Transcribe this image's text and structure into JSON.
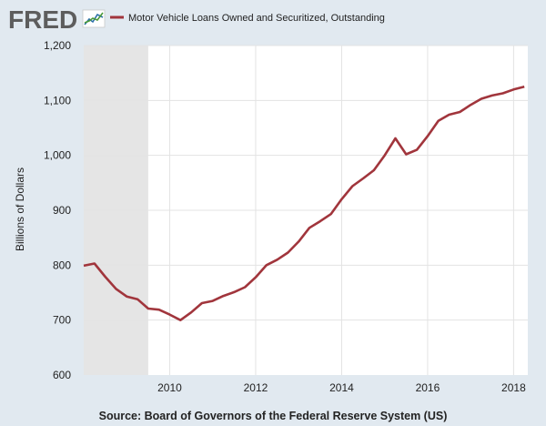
{
  "logo": {
    "text": "FRED",
    "icon": "fred-line-chart-icon"
  },
  "colors": {
    "background": "#e1e9f0",
    "plot_bg": "#ffffff",
    "grid": "#e3e3e3",
    "recession": "#e5e5e5",
    "series": "#a1353c"
  },
  "chart_data": {
    "type": "line",
    "title": "",
    "xlabel": "",
    "ylabel": "Billions of Dollars",
    "xlim": [
      2008.0,
      2018.33
    ],
    "ylim": [
      600,
      1200
    ],
    "y_ticks": [
      600,
      700,
      800,
      900,
      1000,
      1100,
      1200
    ],
    "y_tick_labels": [
      "600",
      "700",
      "800",
      "900",
      "1,000",
      "1,100",
      "1,200"
    ],
    "x_ticks": [
      2010,
      2012,
      2014,
      2016,
      2018
    ],
    "x_tick_labels": [
      "2010",
      "2012",
      "2014",
      "2016",
      "2018"
    ],
    "grid": true,
    "legend_position": "top",
    "recession_shading": [
      [
        2008.0,
        2009.5
      ]
    ],
    "series": [
      {
        "name": "Motor Vehicle Loans Owned and Securitized, Outstanding",
        "x": [
          2008.0,
          2008.25,
          2008.5,
          2008.75,
          2009.0,
          2009.25,
          2009.5,
          2009.75,
          2010.0,
          2010.25,
          2010.5,
          2010.75,
          2011.0,
          2011.25,
          2011.5,
          2011.75,
          2012.0,
          2012.25,
          2012.5,
          2012.75,
          2013.0,
          2013.25,
          2013.5,
          2013.75,
          2014.0,
          2014.25,
          2014.5,
          2014.75,
          2015.0,
          2015.25,
          2015.5,
          2015.75,
          2016.0,
          2016.25,
          2016.5,
          2016.75,
          2017.0,
          2017.25,
          2017.5,
          2017.75,
          2018.0,
          2018.25
        ],
        "values": [
          799,
          803,
          779,
          757,
          743,
          738,
          721,
          719,
          710,
          700,
          714,
          731,
          735,
          744,
          751,
          760,
          778,
          800,
          810,
          823,
          843,
          868,
          880,
          893,
          920,
          944,
          958,
          973,
          1000,
          1031,
          1002,
          1010,
          1035,
          1063,
          1074,
          1079,
          1092,
          1103,
          1109,
          1113,
          1120,
          1125
        ]
      }
    ]
  },
  "source": "Source: Board of Governors of the Federal Reserve System (US)"
}
